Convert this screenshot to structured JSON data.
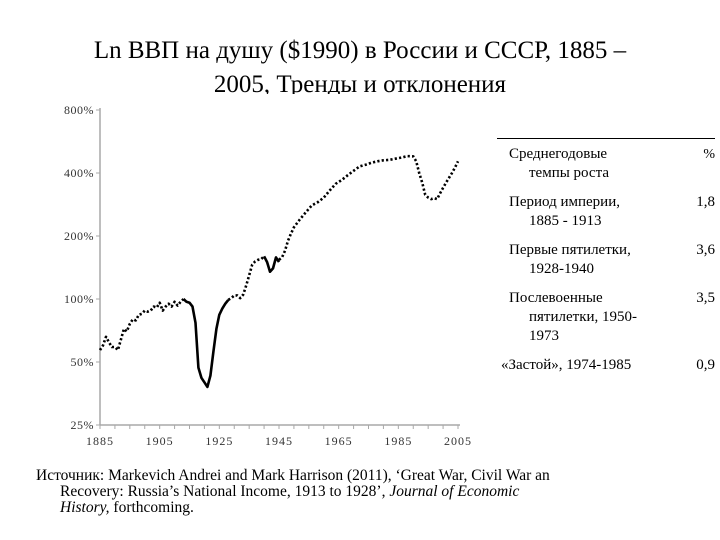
{
  "slide": {
    "title_line1": "Ln ВВП на душу ($1990) в России и СССР, 1885 –",
    "title_line2": "2005, Тренды и отклонения"
  },
  "chart_data": {
    "type": "line",
    "title": "",
    "xlabel": "",
    "ylabel": "",
    "y_scale": "log",
    "xlim": [
      1885,
      2005
    ],
    "ylim": [
      25,
      800
    ],
    "x_ticks": [
      "1885",
      "1905",
      "1925",
      "1945",
      "1965",
      "1985",
      "2005"
    ],
    "y_ticks": [
      "25%",
      "50%",
      "100%",
      "200%",
      "400%",
      "800%"
    ],
    "y_tick_values": [
      25,
      50,
      100,
      200,
      400,
      800
    ],
    "grid": false,
    "legend": "none",
    "line_color": "#000000",
    "segments": [
      {
        "style": "dotted",
        "x": [
          1885,
          1886,
          1887,
          1888,
          1889,
          1890,
          1891,
          1892,
          1893,
          1894,
          1895,
          1896,
          1897,
          1898,
          1899,
          1900,
          1901,
          1902,
          1903,
          1904,
          1905,
          1906,
          1907,
          1908,
          1909,
          1910,
          1911,
          1912,
          1913
        ],
        "y": [
          57,
          60,
          66,
          62,
          59,
          59,
          57,
          64,
          72,
          70,
          76,
          80,
          79,
          84,
          85,
          88,
          87,
          88,
          92,
          91,
          96,
          88,
          92,
          95,
          92,
          97,
          93,
          97,
          100
        ]
      },
      {
        "style": "solid",
        "x": [
          1913,
          1914,
          1915,
          1916,
          1917,
          1918,
          1919,
          1920,
          1921,
          1922,
          1923,
          1924,
          1925,
          1926,
          1927,
          1928
        ],
        "y": [
          100,
          97,
          96,
          92,
          77,
          47,
          42,
          40,
          38,
          43,
          56,
          72,
          84,
          90,
          95,
          99
        ]
      },
      {
        "style": "dotted",
        "x": [
          1928,
          1929,
          1930,
          1931,
          1932,
          1933,
          1934,
          1935,
          1936,
          1937,
          1938,
          1939,
          1940
        ],
        "y": [
          99,
          101,
          104,
          104,
          101,
          105,
          116,
          130,
          146,
          151,
          154,
          155,
          160
        ]
      },
      {
        "style": "solid",
        "x": [
          1940,
          1941,
          1942,
          1943,
          1944,
          1945
        ],
        "y": [
          160,
          150,
          135,
          140,
          158,
          150
        ]
      },
      {
        "style": "dotted",
        "x": [
          1945,
          1946,
          1947,
          1948,
          1949,
          1950,
          1952,
          1954,
          1956,
          1958,
          1960,
          1962,
          1964,
          1966,
          1968,
          1970,
          1972,
          1974,
          1976,
          1978,
          1980,
          1982,
          1984,
          1986,
          1988,
          1990,
          1991,
          1992,
          1993,
          1994,
          1995,
          1996,
          1997,
          1998,
          1999,
          2000,
          2001,
          2002,
          2003,
          2004,
          2005
        ],
        "y": [
          154,
          158,
          170,
          190,
          205,
          220,
          240,
          260,
          280,
          290,
          305,
          330,
          355,
          370,
          390,
          410,
          430,
          438,
          448,
          455,
          460,
          462,
          468,
          474,
          482,
          480,
          455,
          400,
          360,
          315,
          305,
          300,
          303,
          300,
          320,
          340,
          360,
          380,
          400,
          425,
          455
        ]
      }
    ]
  },
  "table": {
    "header_label_line1": "Среднегодовые",
    "header_label_line2": "темпы роста",
    "header_value": "%",
    "rows": [
      {
        "line1": "Период империи,",
        "line2": "1885 - 1913",
        "value": "1,8"
      },
      {
        "line1": "Первые пятилетки,",
        "line2": "1928-1940",
        "value": "3,6"
      },
      {
        "line1": "Послевоенные",
        "line2": "пятилетки, 1950-",
        "line3": "1973",
        "value": "3,5"
      },
      {
        "line1": "«Застой», 1974-1985",
        "value": "0,9"
      }
    ]
  },
  "source": {
    "line1": "Источник: Markevich Andrei and Mark Harrison (2011), ‘Great  War, Civil War an",
    "line2_a": "Recovery: Russia’s National Income, 1913 to 1928’, ",
    "line2_italic": "Journal of Economic",
    "line3_italic": "History,",
    "line3_b": " forthcoming."
  }
}
